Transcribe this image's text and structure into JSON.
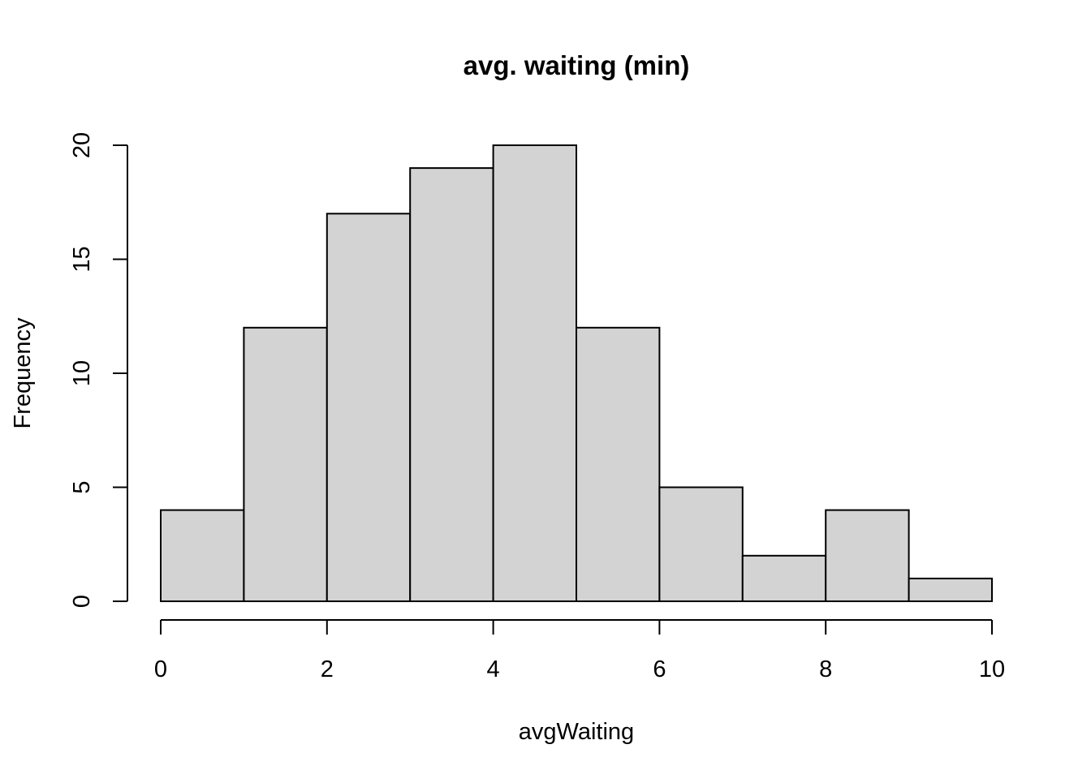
{
  "chart_data": {
    "type": "bar",
    "title": "avg. waiting (min)",
    "xlabel": "avgWaiting",
    "ylabel": "Frequency",
    "bins": [
      {
        "from": 0,
        "to": 1,
        "count": 4
      },
      {
        "from": 1,
        "to": 2,
        "count": 12
      },
      {
        "from": 2,
        "to": 3,
        "count": 17
      },
      {
        "from": 3,
        "to": 4,
        "count": 19
      },
      {
        "from": 4,
        "to": 5,
        "count": 20
      },
      {
        "from": 5,
        "to": 6,
        "count": 12
      },
      {
        "from": 6,
        "to": 7,
        "count": 5
      },
      {
        "from": 7,
        "to": 8,
        "count": 2
      },
      {
        "from": 8,
        "to": 9,
        "count": 4
      },
      {
        "from": 9,
        "to": 10,
        "count": 1
      }
    ],
    "xlim": [
      0,
      10
    ],
    "ylim": [
      0,
      20
    ],
    "x_ticks": [
      "0",
      "2",
      "4",
      "6",
      "8",
      "10"
    ],
    "y_ticks": [
      "0",
      "5",
      "10",
      "15",
      "20"
    ],
    "bar_color": "#d3d3d3",
    "grid": false,
    "legend": "none"
  }
}
